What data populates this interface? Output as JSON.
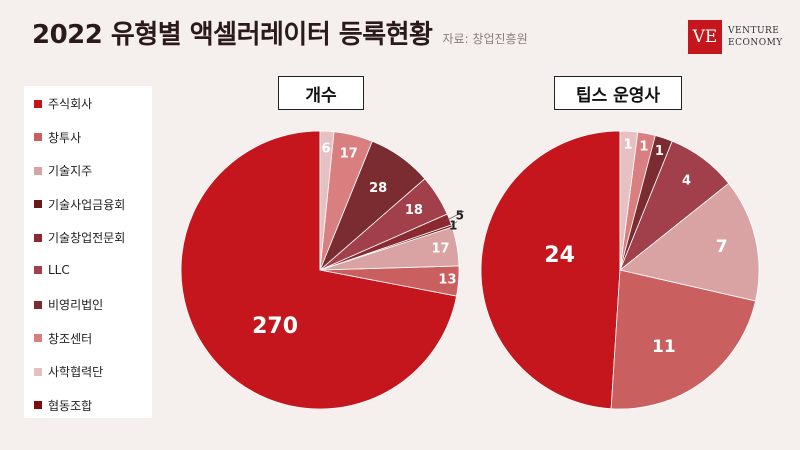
{
  "header": {
    "title": "2022 유형별 액셀러레이터 등록현황",
    "source": "자료: 창업진흥원"
  },
  "logo": {
    "mark": "VE",
    "line1": "VENTURE",
    "line2": "ECONOMY"
  },
  "colors": {
    "background": "#f5efed",
    "slices": [
      "#c4161c",
      "#c95f5e",
      "#d9a3a4",
      "#6b1a1a",
      "#8a2a30",
      "#a1404a",
      "#7b2c31",
      "#d97f7f",
      "#e7c1c1",
      "#7c0c10"
    ]
  },
  "chart_data": [
    {
      "type": "pie",
      "title": "개수",
      "categories": [
        "주식회사",
        "창투사",
        "기술지주",
        "기술사업금융회",
        "기술창업전문회",
        "LLC",
        "비영리법인",
        "창조센터",
        "사학협력단",
        "협동조합"
      ],
      "values": [
        270,
        13,
        17,
        1,
        5,
        18,
        28,
        17,
        6,
        0
      ]
    },
    {
      "type": "pie",
      "title": "팁스 운영사",
      "categories": [
        "주식회사",
        "창투사",
        "기술지주",
        "기술사업금융회",
        "기술창업전문회",
        "LLC",
        "비영리법인",
        "창조센터",
        "사학협력단",
        "협동조합"
      ],
      "values": [
        24,
        11,
        7,
        0,
        0,
        4,
        1,
        1,
        1,
        0
      ]
    }
  ]
}
